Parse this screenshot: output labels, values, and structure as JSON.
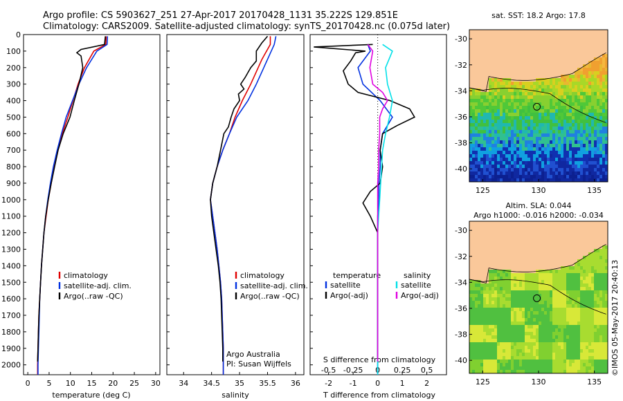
{
  "header": {
    "line1": "Argo profile: CS 5903627_251 27-Apr-2017 20170428_1131 35.222S 129.851E",
    "line2": "Climatology: CARS2009. Satellite-adjusted climatology: synTS_20170428.nc (0.075d later)"
  },
  "colors": {
    "climatology": "#e00000",
    "satellite": "#0030e0",
    "argo": "#000000",
    "salinity_satellite": "#00e0e8",
    "salinity_argo": "#e000e0",
    "land": "#fac89a"
  },
  "chart_data": [
    {
      "type": "line",
      "id": "temperature",
      "xlabel": "temperature (deg C)",
      "xlim": [
        -1,
        31
      ],
      "xticks": [
        "0",
        "5",
        "10",
        "15",
        "20",
        "25",
        "30"
      ],
      "ylim": [
        0,
        2060
      ],
      "yticks": [
        "0",
        "100",
        "200",
        "300",
        "400",
        "500",
        "600",
        "700",
        "800",
        "900",
        "1000",
        "1100",
        "1200",
        "1300",
        "1400",
        "1500",
        "1600",
        "1700",
        "1800",
        "1900",
        "2000"
      ],
      "legend": [
        "climatology",
        "satellite-adj. clim.",
        "Argo(..raw -QC)"
      ],
      "series": [
        {
          "name": "climatology",
          "color": "#e00000",
          "points": [
            [
              18.4,
              10
            ],
            [
              18.3,
              60
            ],
            [
              15.5,
              100
            ],
            [
              13.3,
              200
            ],
            [
              11.8,
              300
            ],
            [
              10.6,
              400
            ],
            [
              9.4,
              500
            ],
            [
              8.1,
              600
            ],
            [
              7.1,
              700
            ],
            [
              6.2,
              800
            ],
            [
              5.5,
              900
            ],
            [
              4.8,
              1000
            ],
            [
              4.3,
              1100
            ],
            [
              3.8,
              1200
            ],
            [
              3.5,
              1300
            ],
            [
              3.2,
              1400
            ],
            [
              3.0,
              1500
            ],
            [
              2.8,
              1600
            ],
            [
              2.6,
              1700
            ],
            [
              2.5,
              1800
            ],
            [
              2.4,
              1900
            ],
            [
              2.3,
              2000
            ],
            [
              2.3,
              2060
            ]
          ]
        },
        {
          "name": "satellite-adj. clim.",
          "color": "#0030e0",
          "points": [
            [
              18.7,
              10
            ],
            [
              18.6,
              60
            ],
            [
              16.2,
              100
            ],
            [
              13.8,
              200
            ],
            [
              12.0,
              300
            ],
            [
              10.5,
              400
            ],
            [
              9.0,
              500
            ],
            [
              7.9,
              600
            ],
            [
              6.9,
              700
            ],
            [
              6.0,
              800
            ],
            [
              5.3,
              900
            ],
            [
              4.7,
              1000
            ],
            [
              4.2,
              1100
            ],
            [
              3.8,
              1200
            ],
            [
              3.5,
              1300
            ],
            [
              3.2,
              1400
            ],
            [
              3.0,
              1500
            ],
            [
              2.8,
              1600
            ],
            [
              2.7,
              1700
            ],
            [
              2.6,
              1800
            ],
            [
              2.5,
              1900
            ],
            [
              2.4,
              2000
            ],
            [
              2.4,
              2060
            ]
          ]
        },
        {
          "name": "Argo(..raw -QC)",
          "color": "#000000",
          "points": [
            [
              18.2,
              10
            ],
            [
              18.0,
              60
            ],
            [
              12.5,
              90
            ],
            [
              11.5,
              110
            ],
            [
              12.5,
              130
            ],
            [
              12.9,
              200
            ],
            [
              12.0,
              300
            ],
            [
              10.9,
              400
            ],
            [
              9.9,
              500
            ],
            [
              8.3,
              600
            ],
            [
              7.1,
              700
            ],
            [
              6.3,
              800
            ],
            [
              5.5,
              900
            ],
            [
              4.8,
              1000
            ],
            [
              4.2,
              1100
            ],
            [
              3.8,
              1200
            ],
            [
              3.5,
              1300
            ],
            [
              3.2,
              1400
            ],
            [
              3.0,
              1500
            ],
            [
              2.8,
              1600
            ],
            [
              2.6,
              1700
            ],
            [
              2.5,
              1800
            ],
            [
              2.4,
              1900
            ],
            [
              2.3,
              1980
            ]
          ]
        }
      ]
    },
    {
      "type": "line",
      "id": "salinity",
      "xlabel": "salinity",
      "xlim": [
        33.7,
        36.15
      ],
      "xticks": [
        "34",
        "34.5",
        "35",
        "35.5",
        "36"
      ],
      "ylim": [
        0,
        2060
      ],
      "legend": [
        "climatology",
        "satellite-adj. clim.",
        "Argo(..raw -QC)"
      ],
      "annotations": [
        "Argo Australia",
        "PI: Susan Wijffels"
      ],
      "series": [
        {
          "name": "climatology",
          "color": "#e00000",
          "points": [
            [
              35.55,
              10
            ],
            [
              35.55,
              60
            ],
            [
              35.4,
              150
            ],
            [
              35.2,
              300
            ],
            [
              35.05,
              400
            ],
            [
              34.92,
              500
            ],
            [
              34.82,
              600
            ],
            [
              34.7,
              700
            ],
            [
              34.6,
              800
            ],
            [
              34.52,
              900
            ],
            [
              34.48,
              1000
            ],
            [
              34.52,
              1100
            ],
            [
              34.56,
              1200
            ],
            [
              34.6,
              1300
            ],
            [
              34.63,
              1400
            ],
            [
              34.66,
              1500
            ],
            [
              34.68,
              1600
            ],
            [
              34.69,
              1700
            ],
            [
              34.7,
              1800
            ],
            [
              34.71,
              1900
            ],
            [
              34.71,
              2000
            ],
            [
              34.71,
              2060
            ]
          ]
        },
        {
          "name": "satellite-adj. clim.",
          "color": "#0030e0",
          "points": [
            [
              35.65,
              10
            ],
            [
              35.62,
              60
            ],
            [
              35.5,
              150
            ],
            [
              35.3,
              300
            ],
            [
              35.15,
              400
            ],
            [
              34.95,
              500
            ],
            [
              34.82,
              600
            ],
            [
              34.7,
              700
            ],
            [
              34.6,
              800
            ],
            [
              34.52,
              900
            ],
            [
              34.48,
              1000
            ],
            [
              34.52,
              1100
            ],
            [
              34.56,
              1200
            ],
            [
              34.6,
              1300
            ],
            [
              34.63,
              1400
            ],
            [
              34.66,
              1500
            ],
            [
              34.68,
              1600
            ],
            [
              34.69,
              1700
            ],
            [
              34.7,
              1800
            ],
            [
              34.71,
              1900
            ],
            [
              34.71,
              2000
            ],
            [
              34.71,
              2060
            ]
          ]
        },
        {
          "name": "Argo(..raw -QC)",
          "color": "#000000",
          "points": [
            [
              35.5,
              10
            ],
            [
              35.4,
              50
            ],
            [
              35.3,
              100
            ],
            [
              35.3,
              160
            ],
            [
              35.2,
              200
            ],
            [
              35.1,
              260
            ],
            [
              35.02,
              300
            ],
            [
              35.08,
              330
            ],
            [
              34.98,
              360
            ],
            [
              35.0,
              400
            ],
            [
              34.9,
              450
            ],
            [
              34.85,
              500
            ],
            [
              34.8,
              560
            ],
            [
              34.72,
              600
            ],
            [
              34.66,
              700
            ],
            [
              34.6,
              800
            ],
            [
              34.52,
              900
            ],
            [
              34.48,
              1000
            ],
            [
              34.5,
              1100
            ],
            [
              34.54,
              1200
            ],
            [
              34.58,
              1300
            ],
            [
              34.62,
              1400
            ],
            [
              34.65,
              1500
            ],
            [
              34.67,
              1600
            ],
            [
              34.68,
              1700
            ],
            [
              34.69,
              1800
            ],
            [
              34.7,
              1900
            ],
            [
              34.7,
              1980
            ]
          ]
        }
      ]
    },
    {
      "type": "line",
      "id": "differences",
      "xlabel": "T difference from climatology",
      "xlabel_top": "S difference from climatology",
      "xlim_T": [
        -2.75,
        2.8
      ],
      "xticks_T": [
        "-2",
        "-1",
        "0",
        "1",
        "2"
      ],
      "xticks_S": [
        "-0.5",
        "-0.25",
        "0",
        "0.25",
        "0.5"
      ],
      "ylim": [
        0,
        2060
      ],
      "legend": {
        "temperature_title": "temperature",
        "salinity_title": "salinity",
        "items": [
          "satellite",
          "Argo(-adj)",
          "satellite",
          "Argo(-adj)"
        ]
      },
      "series": [
        {
          "name": "satellite",
          "group": "temperature",
          "color": "#0030e0",
          "points": [
            [
              -0.4,
              60
            ],
            [
              -0.3,
              100
            ],
            [
              -0.8,
              200
            ],
            [
              -0.6,
              300
            ],
            [
              0.1,
              400
            ],
            [
              0.6,
              500
            ],
            [
              0.2,
              600
            ],
            [
              0.1,
              700
            ],
            [
              0.1,
              800
            ],
            [
              0.05,
              900
            ],
            [
              0.05,
              1000
            ],
            [
              0,
              1100
            ],
            [
              0,
              1200
            ],
            [
              0,
              1400
            ],
            [
              0,
              1600
            ],
            [
              0,
              1800
            ],
            [
              0,
              2000
            ],
            [
              0,
              2060
            ]
          ]
        },
        {
          "name": "Argo(-adj)",
          "group": "temperature",
          "color": "#000000",
          "points": [
            [
              -0.2,
              60
            ],
            [
              -2.6,
              75
            ],
            [
              -0.5,
              100
            ],
            [
              -0.9,
              110
            ],
            [
              -1.1,
              160
            ],
            [
              -1.4,
              220
            ],
            [
              -1.2,
              300
            ],
            [
              -0.8,
              350
            ],
            [
              0.5,
              400
            ],
            [
              1.3,
              450
            ],
            [
              1.5,
              500
            ],
            [
              0.8,
              550
            ],
            [
              0.2,
              600
            ],
            [
              0.1,
              700
            ],
            [
              0.2,
              800
            ],
            [
              0.1,
              900
            ],
            [
              -0.3,
              950
            ],
            [
              -0.6,
              1020
            ],
            [
              -0.3,
              1100
            ],
            [
              0,
              1200
            ],
            [
              0,
              1400
            ],
            [
              0,
              1600
            ],
            [
              0,
              1800
            ],
            [
              0,
              1980
            ]
          ]
        },
        {
          "name": "satellite",
          "group": "salinity",
          "color": "#00e0e8",
          "points": [
            [
              0.05,
              60
            ],
            [
              0.15,
              100
            ],
            [
              0.08,
              200
            ],
            [
              0.1,
              300
            ],
            [
              0.15,
              400
            ],
            [
              0.12,
              500
            ],
            [
              0.08,
              600
            ],
            [
              0.05,
              700
            ],
            [
              0.04,
              800
            ],
            [
              0.03,
              900
            ],
            [
              0.02,
              1000
            ],
            [
              0.01,
              1100
            ],
            [
              0,
              1200
            ],
            [
              0,
              1400
            ],
            [
              0,
              1600
            ],
            [
              0,
              1800
            ],
            [
              0,
              2000
            ],
            [
              0,
              2060
            ]
          ]
        },
        {
          "name": "Argo(-adj)",
          "group": "salinity",
          "color": "#e000e0",
          "points": [
            [
              -0.1,
              60
            ],
            [
              -0.05,
              100
            ],
            [
              -0.08,
              200
            ],
            [
              -0.05,
              300
            ],
            [
              0.05,
              350
            ],
            [
              0.1,
              400
            ],
            [
              0.05,
              450
            ],
            [
              0.02,
              500
            ],
            [
              0.02,
              600
            ],
            [
              0.01,
              700
            ],
            [
              0.01,
              800
            ],
            [
              0,
              900
            ],
            [
              0,
              1000
            ],
            [
              0,
              1200
            ],
            [
              0,
              1400
            ],
            [
              0,
              1600
            ],
            [
              0,
              1800
            ],
            [
              0,
              1980
            ]
          ]
        }
      ]
    },
    {
      "type": "heatmap",
      "id": "sst-map",
      "title": "sat. SST: 18.2  Argo: 17.8",
      "xticks": [
        "125",
        "130",
        "135"
      ],
      "yticks": [
        "-30",
        "-32",
        "-34",
        "-36",
        "-38",
        "-40"
      ],
      "lon_range": [
        123.8,
        136.2
      ],
      "lat_range": [
        -41,
        -29.3
      ],
      "argo_position": {
        "lon": 129.851,
        "lat": -35.222
      },
      "land_color": "#fac89a"
    },
    {
      "type": "heatmap",
      "id": "sla-map",
      "title_line1": "Altim. SLA: 0.044",
      "title_line2": "Argo h1000: -0.016 h2000: -0.034",
      "xticks": [
        "125",
        "130",
        "135"
      ],
      "yticks": [
        "-30",
        "-32",
        "-34",
        "-36",
        "-38",
        "-40"
      ],
      "lon_range": [
        123.8,
        136.2
      ],
      "lat_range": [
        -41,
        -29.3
      ],
      "argo_position": {
        "lon": 129.851,
        "lat": -35.222
      },
      "land_color": "#fac89a"
    }
  ],
  "footer": {
    "credit": "©IMOS 05-May-2017 20:40:13"
  }
}
